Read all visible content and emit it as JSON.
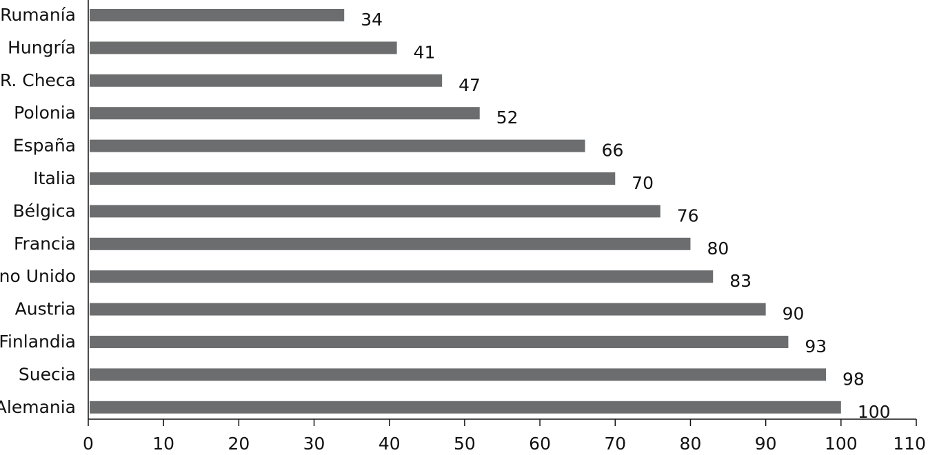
{
  "chart_data": {
    "type": "bar",
    "orientation": "horizontal",
    "categories": [
      "Rumanía",
      "Hungría",
      "R. Checa",
      "Polonia",
      "España",
      "Italia",
      "Bélgica",
      "Francia",
      "Reino Unido",
      "Austria",
      "Finlandia",
      "Suecia",
      "Alemania"
    ],
    "values": [
      34,
      41,
      47,
      52,
      66,
      70,
      76,
      80,
      83,
      90,
      93,
      98,
      100
    ],
    "data_labels": [
      "34",
      "41",
      "47",
      "52",
      "66",
      "70",
      "76",
      "80",
      "83",
      "90",
      "93",
      "98",
      "100"
    ],
    "title": "",
    "xlabel": "",
    "ylabel": "",
    "xlim": [
      0,
      110
    ],
    "x_ticks": [
      0,
      10,
      20,
      30,
      40,
      50,
      60,
      70,
      80,
      90,
      100,
      110
    ],
    "x_tick_labels": [
      "0",
      "10",
      "20",
      "30",
      "40",
      "50",
      "60",
      "70",
      "80",
      "90",
      "100",
      "110"
    ],
    "grid": false,
    "legend": "none",
    "bar_color": "#6b6d6f"
  }
}
